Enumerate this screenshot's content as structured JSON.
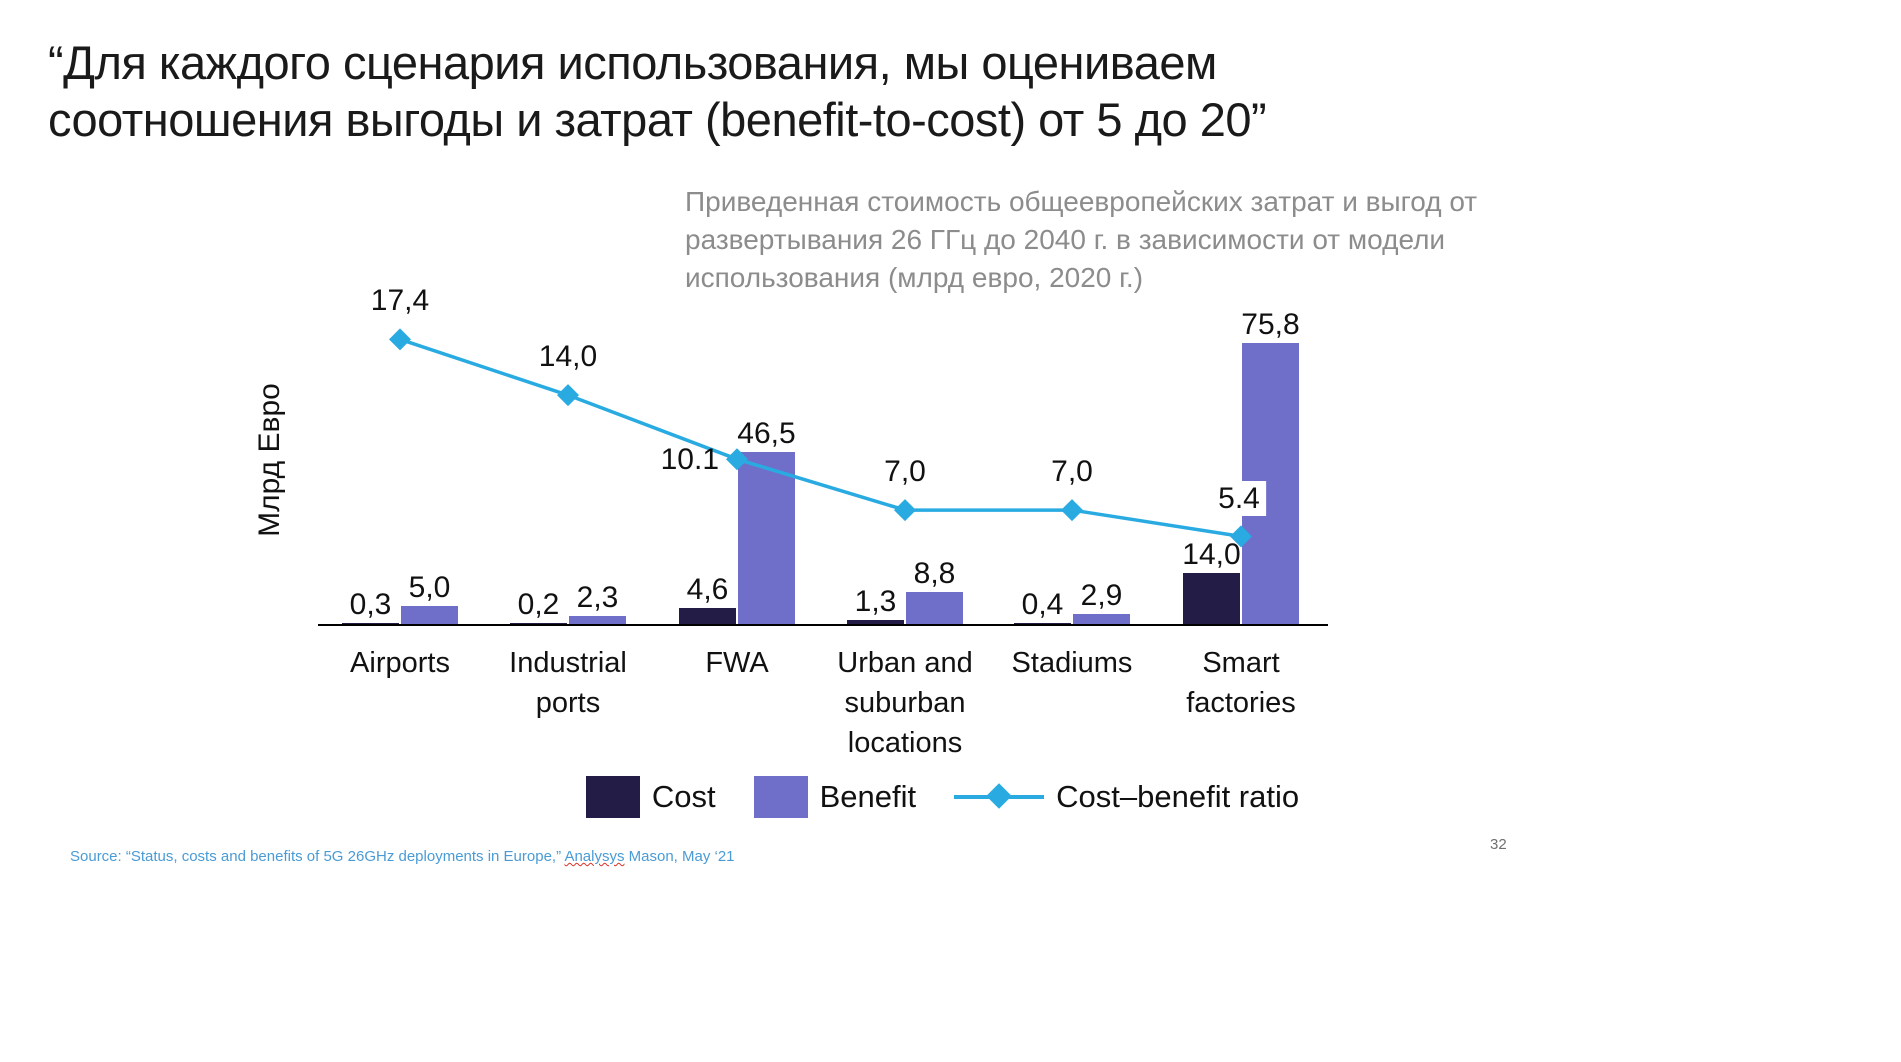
{
  "slide": {
    "title_lines": [
      "“Для каждого сценария использования, мы оцениваем",
      "соотношения выгоды и затрат (benefit-to-cost) от 5 до 20”"
    ],
    "page_number": "32",
    "source": {
      "prefix": "Source: “Status, costs and benefits of 5G 26GHz deployments in Europe,” ",
      "spellcheck_word": "Analysys",
      "suffix": " Mason, May ‘21"
    }
  },
  "annotation": {
    "lines": [
      "Приведенная стоимость общеевропейских затрат и выгод от",
      "развертывания 26 ГГц до 2040 г. в зависимости от модели",
      "использования (млрд евро, 2020 г.)"
    ],
    "color": "#8c8c8c"
  },
  "chart_data": {
    "type": "combo-bar-line",
    "title": "",
    "xlabel": "",
    "ylabel": "Млрд Евро",
    "categories": [
      "Airports",
      "Industrial ports",
      "FWA",
      "Urban and suburban locations",
      "Stadiums",
      "Smart factories"
    ],
    "series": [
      {
        "name": "Cost",
        "chart_type": "bar",
        "color": "#221c46",
        "values": [
          0.3,
          0.2,
          4.6,
          1.3,
          0.4,
          14.0
        ],
        "display_labels": [
          "0,3",
          "0,2",
          "4,6",
          "1,3",
          "0,4",
          "14,0"
        ]
      },
      {
        "name": "Benefit",
        "chart_type": "bar",
        "color": "#6f6ec9",
        "values": [
          5.0,
          2.3,
          46.5,
          8.8,
          2.9,
          75.8
        ],
        "display_labels": [
          "5,0",
          "2,3",
          "46,5",
          "8,8",
          "2,9",
          "75,8"
        ]
      },
      {
        "name": "Cost–benefit ratio",
        "chart_type": "line",
        "marker": "diamond",
        "color": "#29abe2",
        "values": [
          17.4,
          14.0,
          10.1,
          7.0,
          7.0,
          5.4
        ],
        "display_labels": [
          "17,4",
          "14,0",
          "10.1",
          "7,0",
          "7,0",
          "5.4"
        ]
      }
    ],
    "bar_axis_max": 80,
    "grid": false,
    "legend_position": "bottom",
    "units": "млрд евро (2020)"
  }
}
